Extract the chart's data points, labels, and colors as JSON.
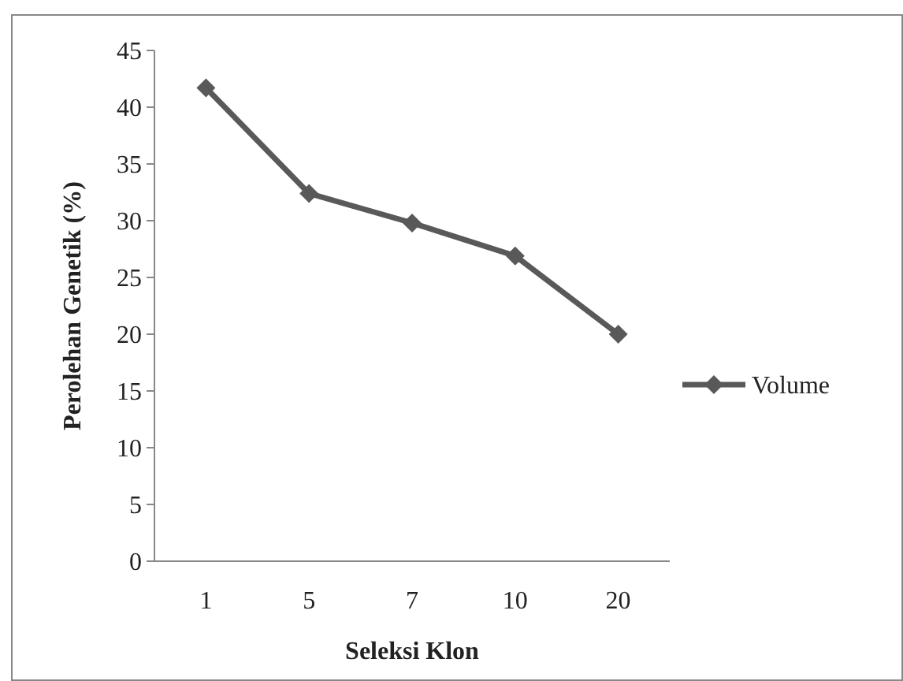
{
  "chart_data": {
    "type": "line",
    "xlabel": "Seleksi Klon",
    "ylabel": "Perolehan Genetik (%)",
    "categories": [
      "1",
      "5",
      "7",
      "10",
      "20"
    ],
    "series": [
      {
        "name": "Volume",
        "color": "#595959",
        "values": [
          41.7,
          32.4,
          29.8,
          26.9,
          20.0
        ]
      }
    ],
    "ylim": [
      0,
      45
    ],
    "yticks": [
      0,
      5,
      10,
      15,
      20,
      25,
      30,
      35,
      40,
      45
    ],
    "grid": false,
    "legend": "right",
    "marker": "diamond",
    "line_style": "solid"
  }
}
